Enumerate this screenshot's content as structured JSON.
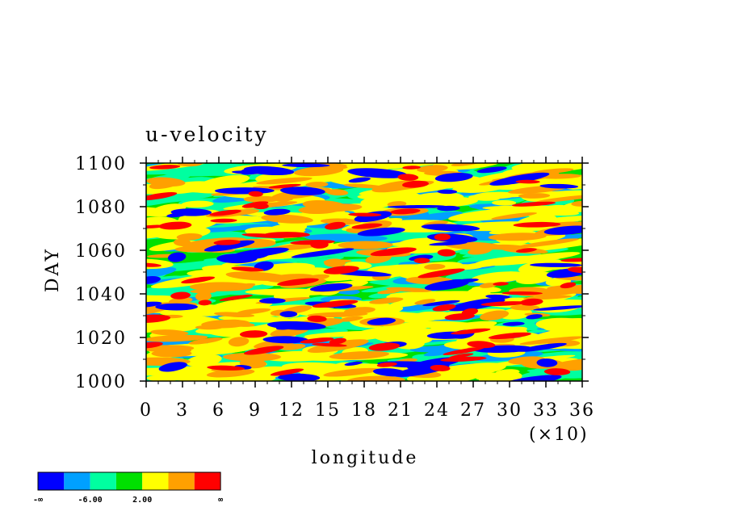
{
  "chart_data": {
    "type": "heatmap",
    "title": "u-velocity",
    "xlabel": "longitude",
    "ylabel": "DAY",
    "x_multiplier_label": "(×10)",
    "xlim": [
      0,
      36
    ],
    "ylim": [
      1000,
      1100
    ],
    "x_ticks": [
      "0",
      "3",
      "6",
      "9",
      "12",
      "15",
      "18",
      "21",
      "24",
      "27",
      "30",
      "33",
      "36"
    ],
    "y_ticks": [
      "1000",
      "1020",
      "1040",
      "1060",
      "1080",
      "1100"
    ],
    "colorbar": {
      "colors": [
        "#0000ff",
        "#00a0ff",
        "#00ffa0",
        "#00e000",
        "#ffff00",
        "#ffa000",
        "#ff0000"
      ],
      "labels": [
        "-∞",
        "-6.00",
        "2.00",
        "∞"
      ]
    }
  }
}
